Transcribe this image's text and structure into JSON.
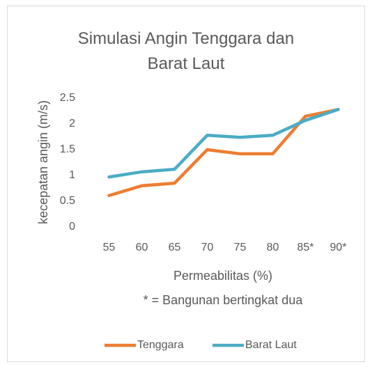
{
  "chart_data": {
    "type": "line",
    "title": "Simulasi Angin Tenggara dan Barat Laut",
    "ylabel": "kecepatan angin (m/s)",
    "xlabel": "Permeabilitas (%)",
    "annotation": "* = Bangunan bertingkat dua",
    "categories": [
      "55",
      "60",
      "65",
      "70",
      "75",
      "80",
      "85*",
      "90*"
    ],
    "series": [
      {
        "name": "Tenggara",
        "color": "#ED7D31",
        "values": [
          0.61,
          0.8,
          0.85,
          1.5,
          1.42,
          1.42,
          2.15,
          2.28
        ]
      },
      {
        "name": "Barat Laut",
        "color": "#4BACC6",
        "values": [
          0.97,
          1.07,
          1.12,
          1.78,
          1.74,
          1.78,
          2.07,
          2.28
        ]
      }
    ],
    "ylim": [
      0,
      2.5
    ],
    "yticks": [
      0,
      0.5,
      1,
      1.5,
      2,
      2.5
    ],
    "grid": false,
    "legend": "bottom"
  }
}
